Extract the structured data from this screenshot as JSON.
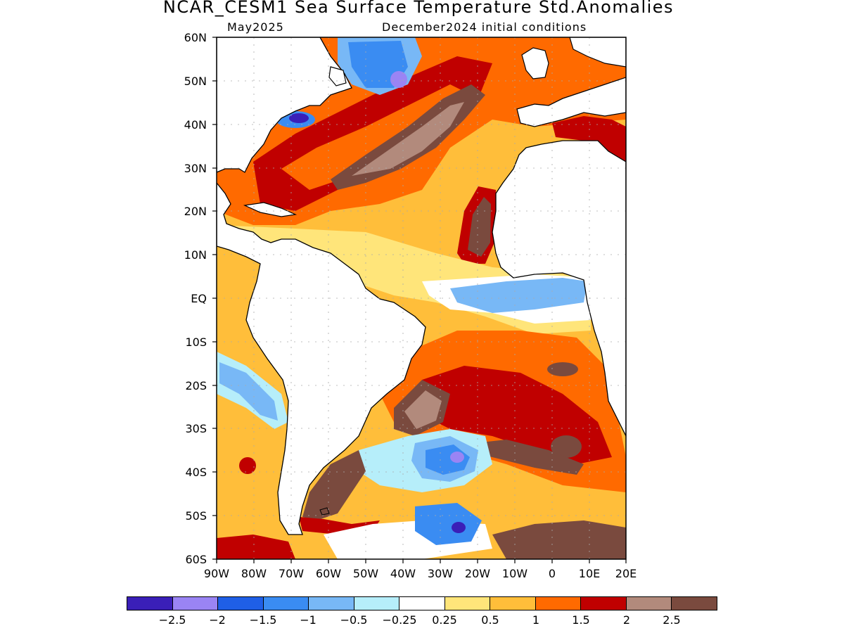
{
  "title": "NCAR_CESM1 Sea Surface Temperature Std.Anomalies",
  "subtitle_left": "May2025",
  "subtitle_right": "December2024 initial conditions",
  "lat_labels": [
    "60N",
    "50N",
    "40N",
    "30N",
    "20N",
    "10N",
    "EQ",
    "10S",
    "20S",
    "30S",
    "40S",
    "50S",
    "60S"
  ],
  "lon_labels": [
    "90W",
    "80W",
    "70W",
    "60W",
    "50W",
    "40W",
    "30W",
    "20W",
    "10W",
    "0",
    "10E",
    "20E"
  ],
  "colorbar": {
    "colors": [
      "#3a1fb8",
      "#9a84f4",
      "#1f5fe6",
      "#3a8cf2",
      "#78b8f6",
      "#b6eefa",
      "#ffffff",
      "#ffe57a",
      "#ffbe3a",
      "#ff6a00",
      "#c00000",
      "#b28a7c",
      "#7a4a3e"
    ],
    "labels": [
      "−2.5",
      "−2",
      "−1.5",
      "−1",
      "−0.5",
      "−0.25",
      "0.25",
      "0.5",
      "1",
      "1.5",
      "2",
      "2.5"
    ]
  },
  "map_colors": {
    "land": "#ffffff",
    "background_anomaly": "#ffbe3a",
    "coastline": "#000000",
    "grid": "#aaaaaa"
  }
}
